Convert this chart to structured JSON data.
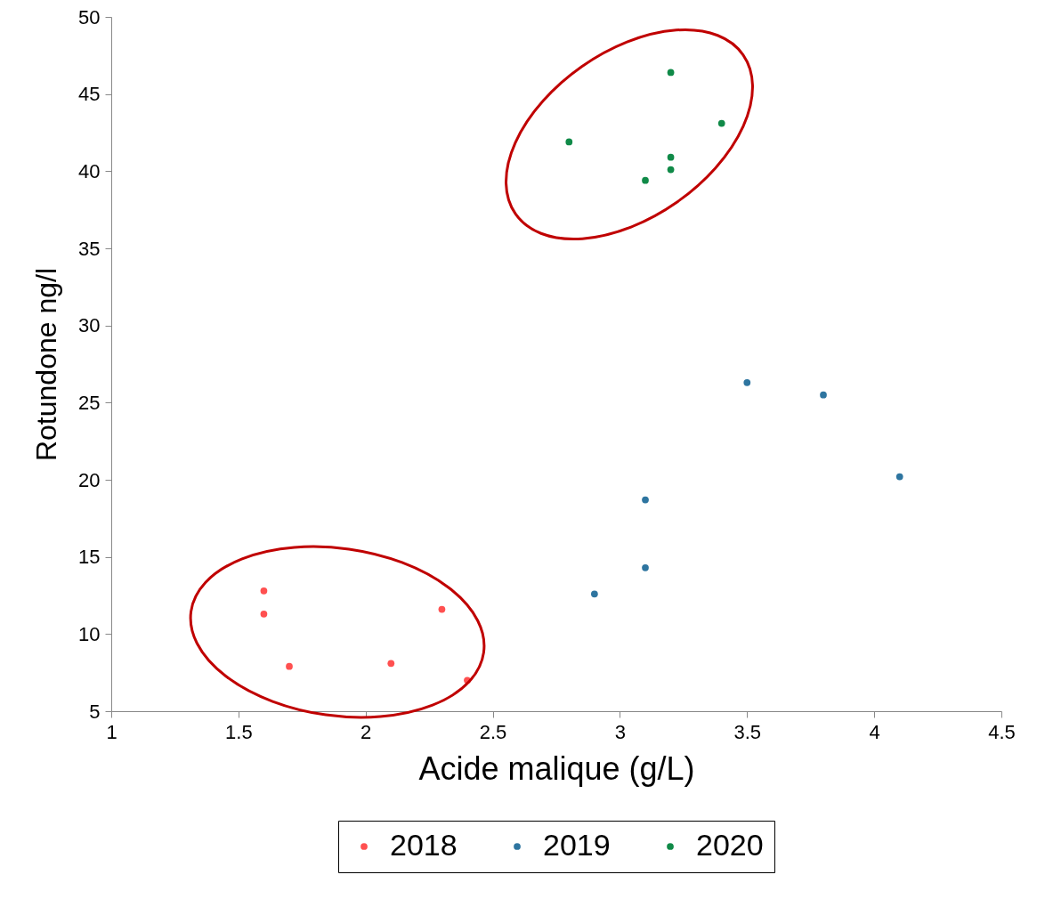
{
  "chart_data": {
    "type": "scatter",
    "xlabel": "Acide malique (g/L)",
    "ylabel": "Rotundone ng/l",
    "series": [
      {
        "name": "2018",
        "color": "#ff5050",
        "x": [
          1.6,
          1.6,
          1.7,
          2.1,
          2.3,
          2.4
        ],
        "values": [
          12.8,
          11.3,
          7.9,
          8.1,
          11.6,
          7.0
        ]
      },
      {
        "name": "2019",
        "color": "#2e75a0",
        "x": [
          2.9,
          3.1,
          3.1,
          3.5,
          3.8,
          4.1
        ],
        "values": [
          12.6,
          14.3,
          18.7,
          26.3,
          25.5,
          20.2
        ]
      },
      {
        "name": "2020",
        "color": "#108a48",
        "x": [
          2.8,
          3.1,
          3.2,
          3.2,
          3.2,
          3.4
        ],
        "values": [
          41.9,
          39.4,
          46.4,
          40.9,
          40.1,
          43.1
        ]
      }
    ],
    "xlim": [
      1,
      4.5
    ],
    "xticks": [
      1,
      1.5,
      2,
      2.5,
      3,
      3.5,
      4,
      4.5
    ],
    "ylim": [
      5,
      50
    ],
    "yticks": [
      5,
      10,
      15,
      20,
      25,
      30,
      35,
      40,
      45,
      50
    ],
    "grid": false,
    "legend": "bottom",
    "marker": "circle"
  }
}
